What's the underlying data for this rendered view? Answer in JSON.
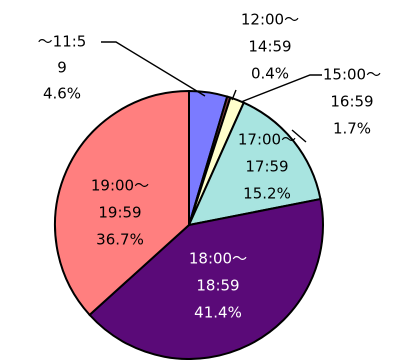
{
  "chart_data": {
    "type": "pie",
    "title": "",
    "slices": [
      {
        "name": "~11:5\n9",
        "label_lines": [
          "～11:5",
          "9",
          "4.6%"
        ],
        "value": 4.6,
        "percent_label": "4.6%",
        "color": "#7b7bff"
      },
      {
        "name": "12:00～14:59",
        "label_lines": [
          "12:00～",
          "14:59",
          "0.4%"
        ],
        "value": 0.4,
        "percent_label": "0.4%",
        "color": "#7f3f3f"
      },
      {
        "name": "15:00～16:59",
        "label_lines": [
          "15:00～",
          "16:59",
          "1.7%"
        ],
        "value": 1.7,
        "percent_label": "1.7%",
        "color": "#ffffcc"
      },
      {
        "name": "17:00～17:59",
        "label_lines": [
          "17:00～",
          "17:59",
          "15.2%"
        ],
        "value": 15.2,
        "percent_label": "15.2%",
        "color": "#a8e4e0"
      },
      {
        "name": "18:00～18:59",
        "label_lines": [
          "18:00～",
          "18:59",
          "41.4%"
        ],
        "value": 41.4,
        "percent_label": "41.4%",
        "color": "#5a0a78"
      },
      {
        "name": "19:00～19:59",
        "label_lines": [
          "19:00～",
          "19:59",
          "36.7%"
        ],
        "value": 36.7,
        "percent_label": "36.7%",
        "color": "#ff7f7f"
      }
    ],
    "start_angle_deg": 0,
    "direction": "clockwise",
    "legend": "none"
  }
}
